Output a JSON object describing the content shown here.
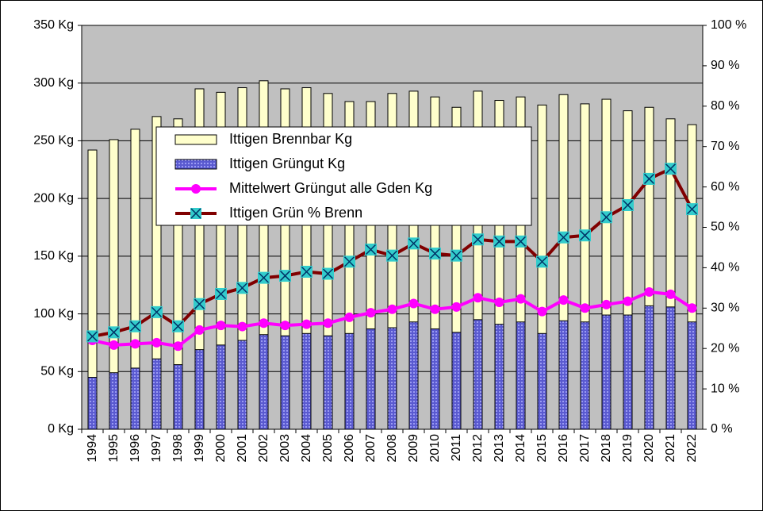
{
  "chart_data": {
    "type": "bar",
    "categories": [
      "1994",
      "1995",
      "1996",
      "1997",
      "1998",
      "1999",
      "2000",
      "2001",
      "2002",
      "2003",
      "2004",
      "2005",
      "2006",
      "2007",
      "2008",
      "2009",
      "2010",
      "2011",
      "2012",
      "2013",
      "2014",
      "2015",
      "2016",
      "2017",
      "2018",
      "2019",
      "2020",
      "2021",
      "2022"
    ],
    "series": [
      {
        "name": "Ittigen Brennbar Kg",
        "type": "bar",
        "color": "#ffffcc",
        "values": [
          242,
          251,
          260,
          271,
          269,
          295,
          292,
          296,
          302,
          295,
          296,
          291,
          284,
          284,
          291,
          293,
          288,
          279,
          293,
          285,
          288,
          281,
          290,
          282,
          286,
          276,
          279,
          269,
          264
        ]
      },
      {
        "name": "Ittigen Grüngut Kg",
        "type": "bar",
        "color": "#5a5ad0",
        "values": [
          45,
          49,
          53,
          61,
          56,
          69,
          73,
          77,
          82,
          81,
          83,
          81,
          83,
          87,
          88,
          93,
          87,
          84,
          95,
          91,
          93,
          83,
          94,
          93,
          99,
          99,
          107,
          106,
          93
        ]
      },
      {
        "name": "Mittelwert Grüngut alle Gden Kg",
        "type": "line",
        "color": "#ff00ff",
        "values": [
          77,
          73,
          74,
          75,
          72,
          86,
          90,
          89,
          92,
          90,
          91,
          92,
          97,
          101,
          104,
          109,
          104,
          106,
          114,
          110,
          113,
          102,
          112,
          105,
          108,
          111,
          119,
          117,
          105
        ]
      },
      {
        "name": "Ittigen Grün % Brenn",
        "type": "line",
        "axis": "y2",
        "color": "#800000",
        "marker_color": "#33cccc",
        "values": [
          23,
          24,
          25.5,
          29,
          25.5,
          31,
          33.5,
          35,
          37.5,
          38,
          39,
          38.5,
          41.5,
          44.5,
          43,
          46,
          43.5,
          43,
          47,
          46.5,
          46.5,
          41.5,
          47.5,
          48,
          52.5,
          55.5,
          62,
          64.5,
          54.5
        ]
      }
    ],
    "ylim": [
      0,
      350
    ],
    "yticks": [
      {
        "value": 0,
        "label": "0 Kg"
      },
      {
        "value": 50,
        "label": "50 Kg"
      },
      {
        "value": 100,
        "label": "100 Kg"
      },
      {
        "value": 150,
        "label": "150 Kg"
      },
      {
        "value": 200,
        "label": "200 Kg"
      },
      {
        "value": 250,
        "label": "250 Kg"
      },
      {
        "value": 300,
        "label": "300 Kg"
      },
      {
        "value": 350,
        "label": "350 Kg"
      }
    ],
    "y2lim": [
      0,
      100
    ],
    "y2ticks": [
      {
        "value": 0,
        "label": "0 %"
      },
      {
        "value": 10,
        "label": "10 %"
      },
      {
        "value": 20,
        "label": "20 %"
      },
      {
        "value": 30,
        "label": "30 %"
      },
      {
        "value": 40,
        "label": "40 %"
      },
      {
        "value": 50,
        "label": "50 %"
      },
      {
        "value": 60,
        "label": "60 %"
      },
      {
        "value": 70,
        "label": "70 %"
      },
      {
        "value": 80,
        "label": "80 %"
      },
      {
        "value": 90,
        "label": "90 %"
      },
      {
        "value": 100,
        "label": "100 %"
      }
    ],
    "grid": true,
    "plot_background": "#c0c0c0",
    "legend": "top-center"
  }
}
